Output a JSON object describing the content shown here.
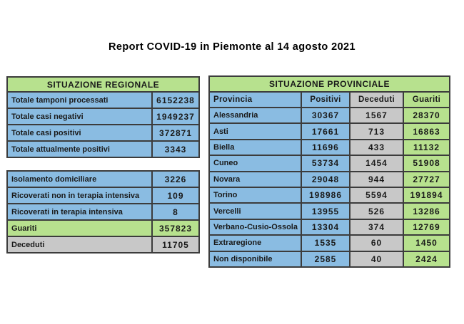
{
  "title": "Report COVID-19 in Piemonte al 14 agosto 2021",
  "colors": {
    "green": "#b7e18e",
    "blue": "#8abce2",
    "gray": "#c8c8c8",
    "border": "#3c3c3c"
  },
  "regional": {
    "header": "SITUAZIONE REGIONALE",
    "rows": [
      {
        "label": "Totale tamponi processati",
        "value": "6152238",
        "color": "blue"
      },
      {
        "label": "Totale casi negativi",
        "value": "1949237",
        "color": "blue"
      },
      {
        "label": "Totale casi positivi",
        "value": "372871",
        "color": "blue"
      },
      {
        "label": "Totale attualmente positivi",
        "value": "3343",
        "color": "blue"
      }
    ]
  },
  "current": {
    "rows": [
      {
        "label": "Isolamento domiciliare",
        "value": "3226",
        "color": "blue"
      },
      {
        "label": "Ricoverati non in terapia intensiva",
        "value": "109",
        "color": "blue"
      },
      {
        "label": "Ricoverati in terapia intensiva",
        "value": "8",
        "color": "blue"
      },
      {
        "label": "Guariti",
        "value": "357823",
        "color": "green"
      },
      {
        "label": "Deceduti",
        "value": "11705",
        "color": "gray"
      }
    ]
  },
  "provincial": {
    "header": "SITUAZIONE PROVINCIALE",
    "columns": [
      "Provincia",
      "Positivi",
      "Deceduti",
      "Guariti"
    ],
    "rows": [
      {
        "provincia": "Alessandria",
        "positivi": "30367",
        "deceduti": "1567",
        "guariti": "28370"
      },
      {
        "provincia": "Asti",
        "positivi": "17661",
        "deceduti": "713",
        "guariti": "16863"
      },
      {
        "provincia": "Biella",
        "positivi": "11696",
        "deceduti": "433",
        "guariti": "11132"
      },
      {
        "provincia": "Cuneo",
        "positivi": "53734",
        "deceduti": "1454",
        "guariti": "51908"
      },
      {
        "provincia": "Novara",
        "positivi": "29048",
        "deceduti": "944",
        "guariti": "27727"
      },
      {
        "provincia": "Torino",
        "positivi": "198986",
        "deceduti": "5594",
        "guariti": "191894"
      },
      {
        "provincia": "Vercelli",
        "positivi": "13955",
        "deceduti": "526",
        "guariti": "13286"
      },
      {
        "provincia": "Verbano-Cusio-Ossola",
        "positivi": "13304",
        "deceduti": "374",
        "guariti": "12769"
      },
      {
        "provincia": "Extraregione",
        "positivi": "1535",
        "deceduti": "60",
        "guariti": "1450"
      },
      {
        "provincia": "Non disponibile",
        "positivi": "2585",
        "deceduti": "40",
        "guariti": "2424"
      }
    ]
  }
}
